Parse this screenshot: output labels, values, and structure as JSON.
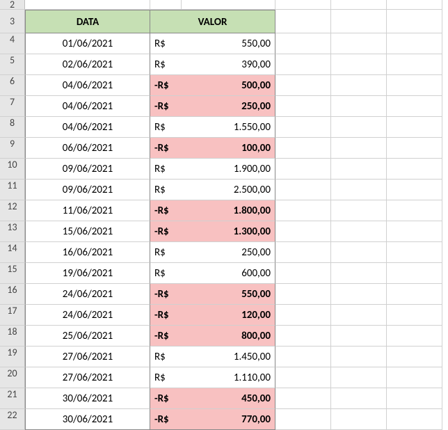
{
  "colors": {
    "header_bg": "#c6e0b4",
    "negative_bg": "#f8c1c1",
    "row_head_bg": "#e6e6e6",
    "grid_line": "#d0d0d0",
    "data_border": "#888888",
    "text": "#000000"
  },
  "fonts": {
    "family": "Calibri",
    "size_pt": 11,
    "header_weight": "bold"
  },
  "columns": {
    "row_header_width": 36,
    "data_col_width": 180,
    "currency_col_width": 45,
    "amount_col_width": 135,
    "extra_col_width": 80
  },
  "headers": {
    "data": "DATA",
    "valor": "VALOR"
  },
  "row_numbers_start": 2,
  "currency_prefix_pos": "R$",
  "currency_prefix_neg": "-R$",
  "rows": [
    {
      "row": 4,
      "date": "01/06/2021",
      "currency": "R$",
      "amount": "550,00",
      "negative": false
    },
    {
      "row": 5,
      "date": "02/06/2021",
      "currency": "R$",
      "amount": "390,00",
      "negative": false
    },
    {
      "row": 6,
      "date": "04/06/2021",
      "currency": "-R$",
      "amount": "500,00",
      "negative": true
    },
    {
      "row": 7,
      "date": "04/06/2021",
      "currency": "-R$",
      "amount": "250,00",
      "negative": true
    },
    {
      "row": 8,
      "date": "04/06/2021",
      "currency": "R$",
      "amount": "1.550,00",
      "negative": false
    },
    {
      "row": 9,
      "date": "06/06/2021",
      "currency": "-R$",
      "amount": "100,00",
      "negative": true
    },
    {
      "row": 10,
      "date": "09/06/2021",
      "currency": "R$",
      "amount": "1.900,00",
      "negative": false
    },
    {
      "row": 11,
      "date": "09/06/2021",
      "currency": "R$",
      "amount": "2.500,00",
      "negative": false
    },
    {
      "row": 12,
      "date": "11/06/2021",
      "currency": "-R$",
      "amount": "1.800,00",
      "negative": true
    },
    {
      "row": 13,
      "date": "15/06/2021",
      "currency": "-R$",
      "amount": "1.300,00",
      "negative": true
    },
    {
      "row": 14,
      "date": "16/06/2021",
      "currency": "R$",
      "amount": "250,00",
      "negative": false
    },
    {
      "row": 15,
      "date": "19/06/2021",
      "currency": "R$",
      "amount": "600,00",
      "negative": false
    },
    {
      "row": 16,
      "date": "24/06/2021",
      "currency": "-R$",
      "amount": "550,00",
      "negative": true
    },
    {
      "row": 17,
      "date": "24/06/2021",
      "currency": "-R$",
      "amount": "120,00",
      "negative": true
    },
    {
      "row": 18,
      "date": "25/06/2021",
      "currency": "-R$",
      "amount": "800,00",
      "negative": true
    },
    {
      "row": 19,
      "date": "27/06/2021",
      "currency": "R$",
      "amount": "1.450,00",
      "negative": false
    },
    {
      "row": 20,
      "date": "27/06/2021",
      "currency": "R$",
      "amount": "1.110,00",
      "negative": false
    },
    {
      "row": 21,
      "date": "30/06/2021",
      "currency": "-R$",
      "amount": "450,00",
      "negative": true
    },
    {
      "row": 22,
      "date": "30/06/2021",
      "currency": "-R$",
      "amount": "770,00",
      "negative": true
    }
  ]
}
